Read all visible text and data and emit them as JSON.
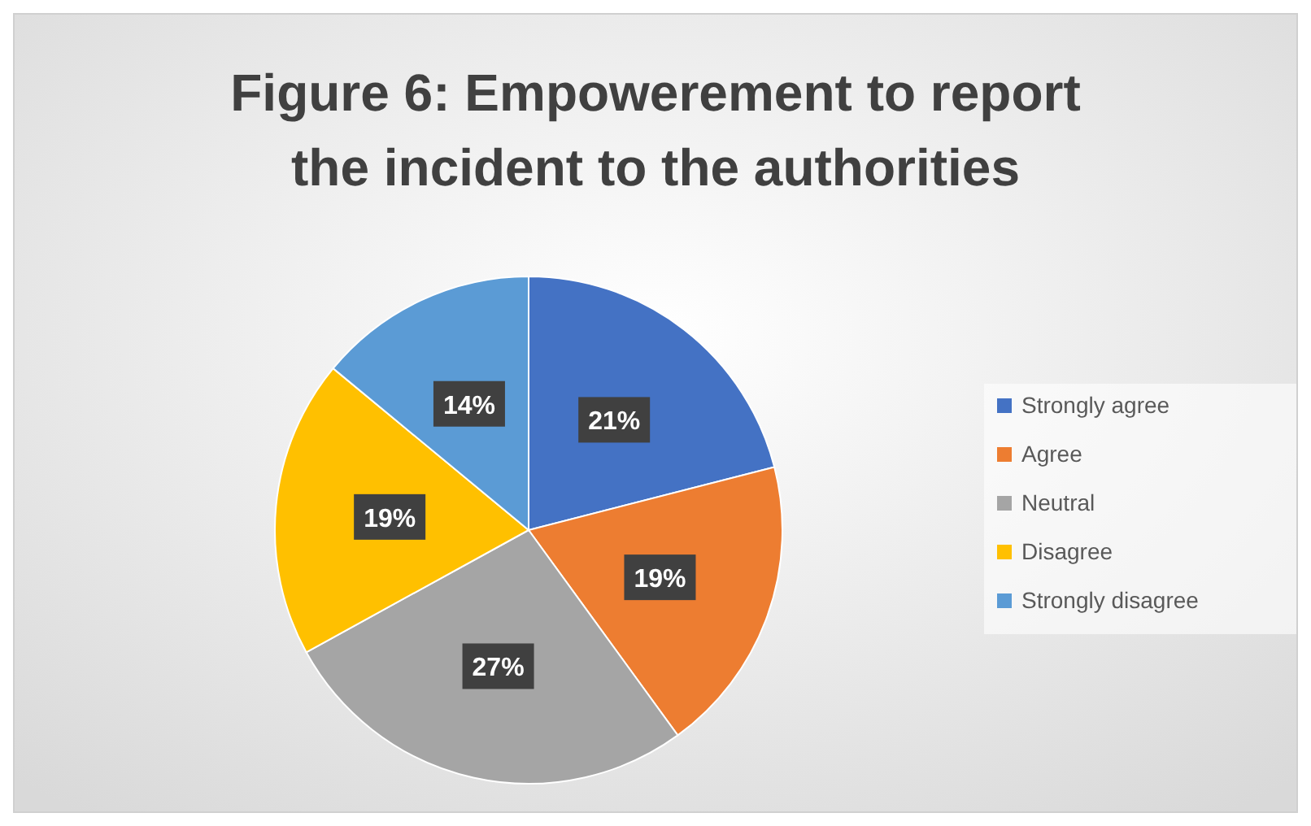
{
  "chart_data": {
    "type": "pie",
    "title": "Figure 6: Empowerement to report the incident to the authorities",
    "categories": [
      "Strongly agree",
      "Agree",
      "Neutral",
      "Disagree",
      "Strongly disagree"
    ],
    "values": [
      21,
      19,
      27,
      19,
      14
    ],
    "colors": [
      "#4472c4",
      "#ed7d31",
      "#a5a5a5",
      "#ffc000",
      "#5b9bd5"
    ],
    "value_labels": [
      "21%",
      "19%",
      "27%",
      "19%",
      "14%"
    ],
    "legend": "right"
  }
}
